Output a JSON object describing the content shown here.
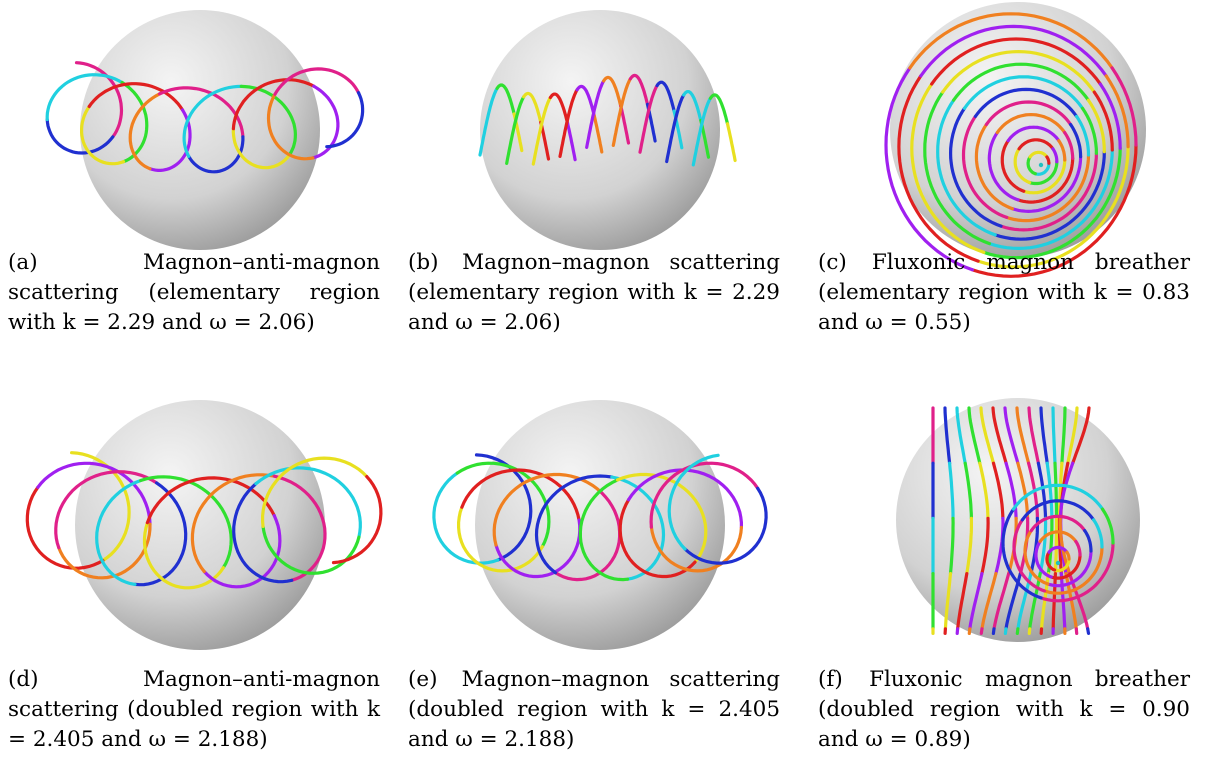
{
  "panels": [
    {
      "label": "(a)",
      "caption": "Magnon–anti-magnon scattering (elementary region with k = 2.29 and ω = 2.06)",
      "style": "ring"
    },
    {
      "label": "(b)",
      "caption": "Magnon–magnon scattering (elementary region with k = 2.29 and ω = 2.06)",
      "style": "arches"
    },
    {
      "label": "(c)",
      "caption": "Fluxonic magnon breather (elementary region with k = 0.83 and ω = 0.55)",
      "style": "nested"
    },
    {
      "label": "(d)",
      "caption": "Magnon–anti-magnon scattering (doubled region with k = 2.405 and ω = 2.188)",
      "style": "ring-doubled"
    },
    {
      "label": "(e)",
      "caption": "Magnon–magnon scattering (doubled region with k = 2.405 and ω = 2.188)",
      "style": "arches-doubled"
    },
    {
      "label": "(f)",
      "caption": "Fluxonic magnon breather (doubled region with k = 0.90 and ω = 0.89)",
      "style": "fan"
    }
  ],
  "colors": {
    "sphere_light": "#f4f4f4",
    "sphere_dark": "#9a9a9a",
    "curves": [
      "#e0208a",
      "#2030d0",
      "#20d0e0",
      "#30e030",
      "#e8e020",
      "#e02020",
      "#a020f0",
      "#f08020"
    ]
  }
}
